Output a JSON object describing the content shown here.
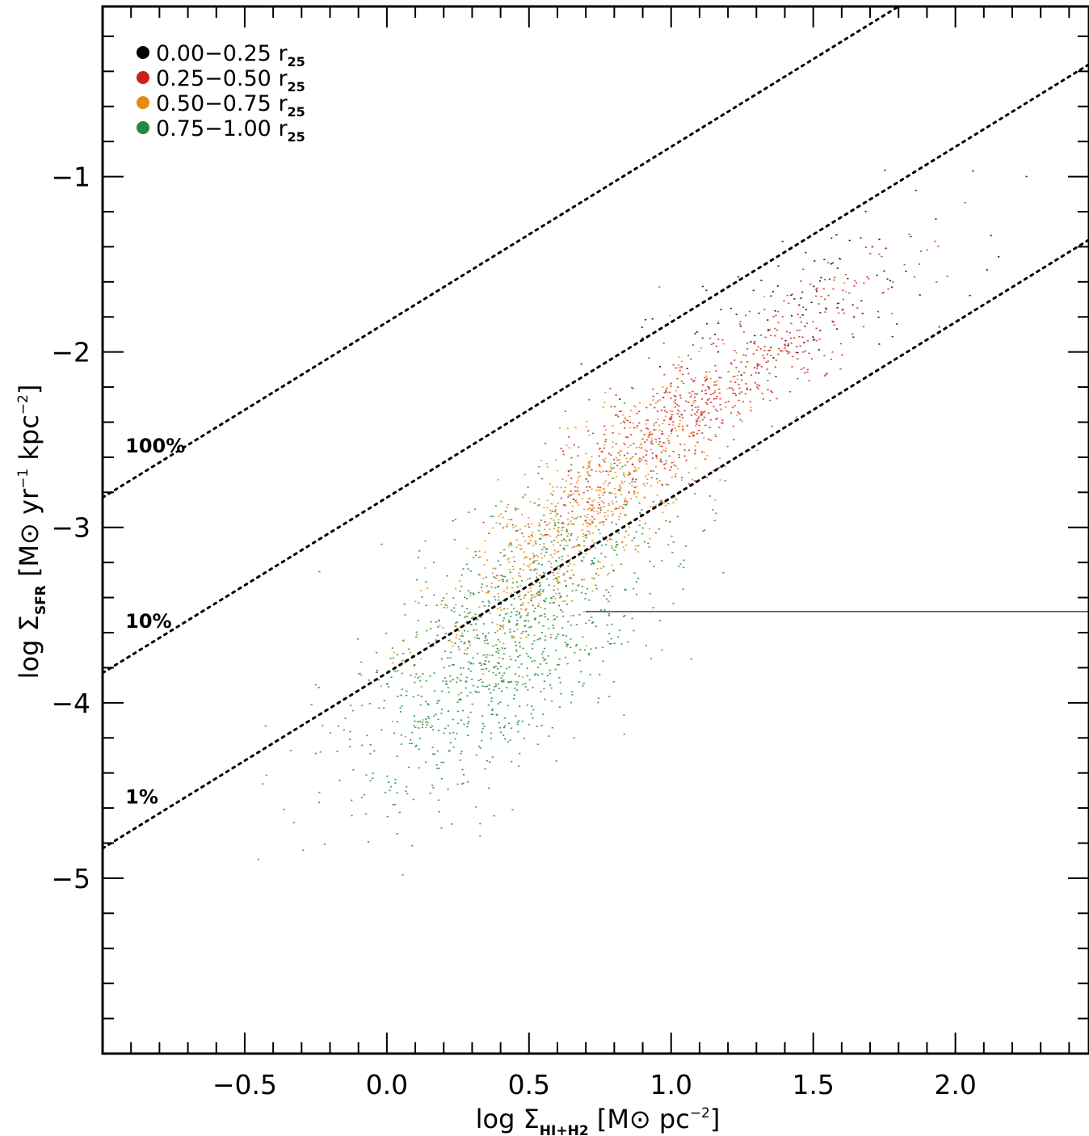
{
  "chart_data": {
    "type": "scatter",
    "xlim": [
      -1.0,
      2.47
    ],
    "ylim": [
      -6.0,
      -0.03
    ],
    "xticks": [
      -0.5,
      0.0,
      0.5,
      1.0,
      1.5,
      2.0
    ],
    "xtick_labels": [
      "−0.5",
      "0.0",
      "0.5",
      "1.0",
      "1.5",
      "2.0"
    ],
    "yticks": [
      -1,
      -2,
      -3,
      -4,
      -5
    ],
    "ytick_labels": [
      "−1",
      "−2",
      "−3",
      "−4",
      "−5"
    ],
    "xlabel": {
      "prefix": "log Σ",
      "sub": "HI+H2",
      "main": " [M⊙ pc",
      "sup": "−2",
      "end": "]"
    },
    "ylabel": {
      "prefix": "log Σ",
      "sub": "SFR",
      "main1": " [M⊙ yr",
      "sup1": "−1",
      "main2": " kpc",
      "sup2": "−2",
      "end": "]"
    },
    "legend_position": "top-left",
    "series": [
      {
        "name": "0.00−0.25",
        "unit": "r",
        "unit_sub": "25",
        "color": "#000000",
        "n": 110,
        "center": [
          1.45,
          -1.75
        ],
        "spread": [
          0.3,
          0.28
        ],
        "corr": 0.7
      },
      {
        "name": "0.25−0.50",
        "unit": "r",
        "unit_sub": "25",
        "color": "#cc1f1f",
        "n": 650,
        "center": [
          1.1,
          -2.3
        ],
        "spread": [
          0.32,
          0.38
        ],
        "corr": 0.9
      },
      {
        "name": "0.50−0.75",
        "unit": "r",
        "unit_sub": "25",
        "color": "#e88a10",
        "n": 750,
        "center": [
          0.68,
          -2.95
        ],
        "spread": [
          0.26,
          0.42
        ],
        "corr": 0.85
      },
      {
        "name": "0.75−1.00",
        "unit": "r",
        "unit_sub": "25",
        "color": "#1f8a3a",
        "n": 1050,
        "center": [
          0.42,
          -3.65
        ],
        "spread": [
          0.28,
          0.45
        ],
        "corr": 0.65
      }
    ],
    "reference_lines": [
      {
        "label": "100%",
        "slope": 1.0,
        "intercept": -1.83
      },
      {
        "label": "10%",
        "slope": 1.0,
        "intercept": -2.83
      },
      {
        "label": "1%",
        "slope": 1.0,
        "intercept": -3.83
      }
    ],
    "hline": {
      "y": -3.48,
      "x_start": 0.7
    }
  }
}
